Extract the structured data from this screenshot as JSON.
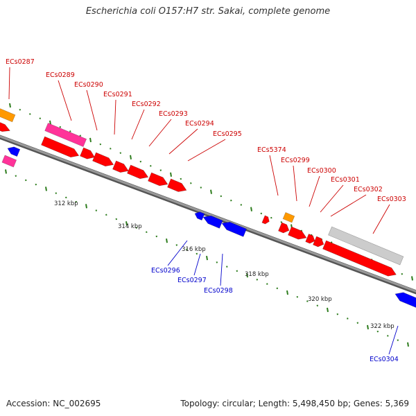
{
  "title": "Escherichia coli O157:H7 str. Sakai, complete genome",
  "accession_text": "Accession: NC_002695",
  "summary_text": "Topology: circular; Length: 5,498,450 bp; Genes: 5,369",
  "colors": {
    "backbone": "#7a7a7a",
    "tick": "#2e7d1e",
    "forward_gene": "#ff0000",
    "reverse_gene": "#0000ff",
    "forward_label": "#cc0000",
    "reverse_label": "#0000cc",
    "orange_feature": "#ff9900",
    "pink_feature": "#ff3399",
    "grey_feature": "#cccccc",
    "scale_label": "#222222"
  },
  "scale_labels": [
    "312 kbp",
    "314 kbp",
    "316 kbp",
    "318 kbp",
    "320 kbp",
    "322 kbp"
  ],
  "forward_gene_labels": [
    "ECs0287",
    "ECs0289",
    "ECs0290",
    "ECs0291",
    "ECs0292",
    "ECs0293",
    "ECs0294",
    "ECs0295",
    "ECs5374",
    "ECs0299",
    "ECs0300",
    "ECs0301",
    "ECs0302",
    "ECs0303"
  ],
  "reverse_gene_labels": [
    "ECs0296",
    "ECs0297",
    "ECs0298",
    "ECs0304"
  ]
}
